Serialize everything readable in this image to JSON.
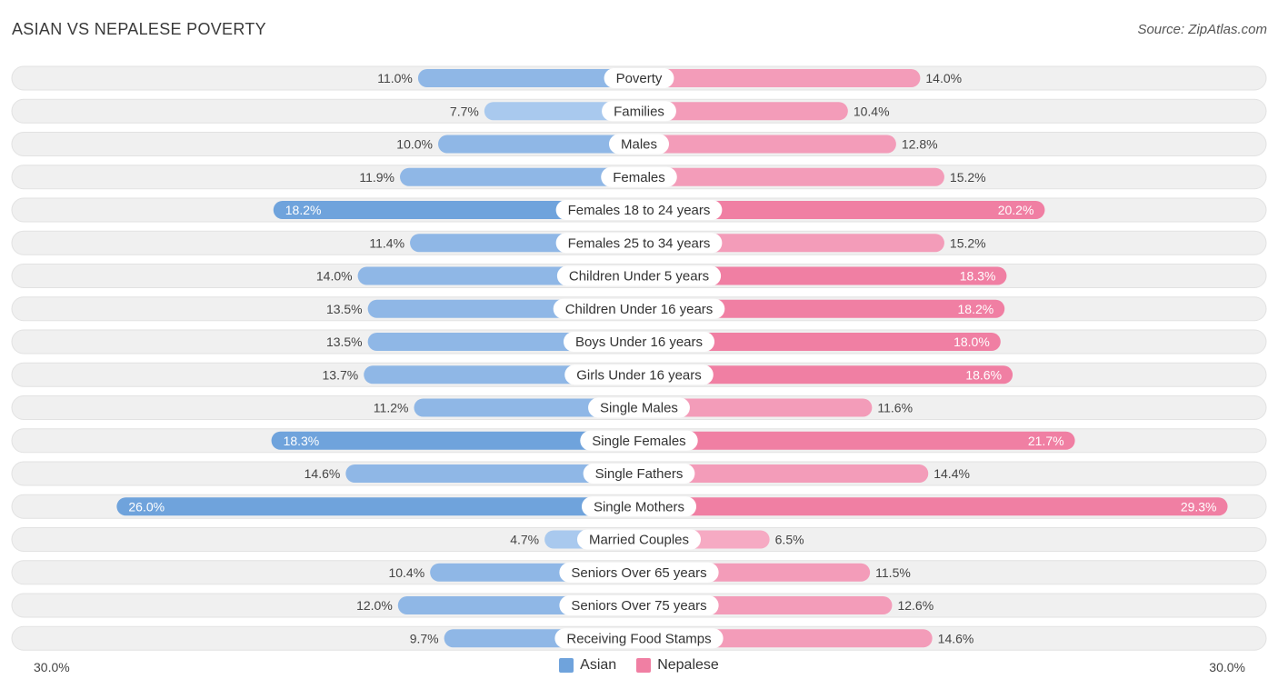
{
  "header": {
    "title": "ASIAN VS NEPALESE POVERTY",
    "source": "Source: ZipAtlas.com"
  },
  "colors": {
    "asian": "#6fa3dc",
    "nepalese": "#f07fa3",
    "asian_light": "#a9c9ee",
    "nepalese_light": "#f6aac3",
    "row_bg": "#f0f0f0",
    "row_border": "#e2e2e2"
  },
  "chart_data": {
    "type": "bar",
    "orientation": "diverging-horizontal",
    "title": "ASIAN VS NEPALESE POVERTY",
    "categories": [
      "Poverty",
      "Families",
      "Males",
      "Females",
      "Females 18 to 24 years",
      "Females 25 to 34 years",
      "Children Under 5 years",
      "Children Under 16 years",
      "Boys Under 16 years",
      "Girls Under 16 years",
      "Single Males",
      "Single Females",
      "Single Fathers",
      "Single Mothers",
      "Married Couples",
      "Seniors Over 65 years",
      "Seniors Over 75 years",
      "Receiving Food Stamps"
    ],
    "series": [
      {
        "name": "Asian",
        "values": [
          11.0,
          7.7,
          10.0,
          11.9,
          18.2,
          11.4,
          14.0,
          13.5,
          13.5,
          13.7,
          11.2,
          18.3,
          14.6,
          26.0,
          4.7,
          10.4,
          12.0,
          9.7
        ],
        "labels": [
          "11.0%",
          "7.7%",
          "10.0%",
          "11.9%",
          "18.2%",
          "11.4%",
          "14.0%",
          "13.5%",
          "13.5%",
          "13.7%",
          "11.2%",
          "18.3%",
          "14.6%",
          "26.0%",
          "4.7%",
          "10.4%",
          "12.0%",
          "9.7%"
        ]
      },
      {
        "name": "Nepalese",
        "values": [
          14.0,
          10.4,
          12.8,
          15.2,
          20.2,
          15.2,
          18.3,
          18.2,
          18.0,
          18.6,
          11.6,
          21.7,
          14.4,
          29.3,
          6.5,
          11.5,
          12.6,
          14.6
        ],
        "labels": [
          "14.0%",
          "10.4%",
          "12.8%",
          "15.2%",
          "20.2%",
          "15.2%",
          "18.3%",
          "18.2%",
          "18.0%",
          "18.6%",
          "11.6%",
          "21.7%",
          "14.4%",
          "29.3%",
          "6.5%",
          "11.5%",
          "12.6%",
          "14.6%"
        ]
      }
    ],
    "xlim": [
      -30,
      30
    ],
    "axis_labels": {
      "left": "30.0%",
      "right": "30.0%"
    },
    "legend": [
      "Asian",
      "Nepalese"
    ],
    "legend_position": "bottom-center"
  }
}
